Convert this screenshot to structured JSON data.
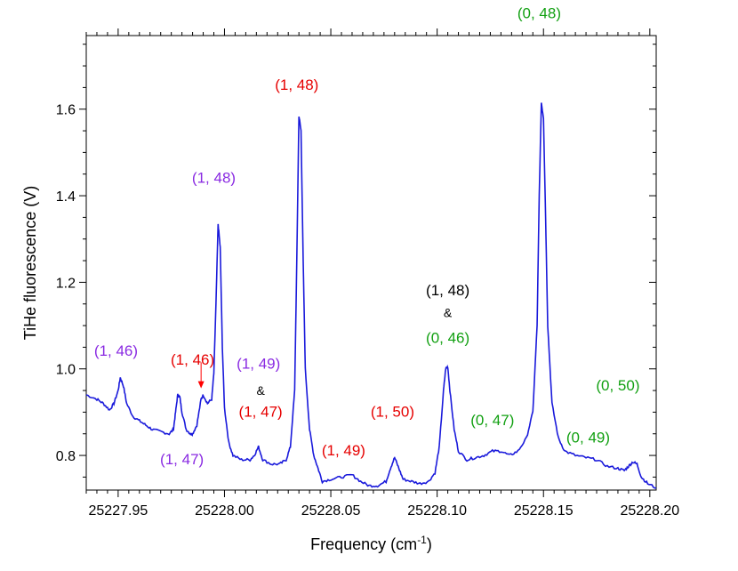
{
  "chart_data": {
    "type": "line",
    "title": "",
    "xlabel": "Frequency (cm",
    "xlabel_sup": "-1",
    "xlabel_tail": ")",
    "ylabel": "TiHe fluorescence (V)",
    "xlim": [
      25227.935,
      25228.203
    ],
    "ylim": [
      0.72,
      1.77
    ],
    "x_ticks": [
      25227.95,
      25228.0,
      25228.05,
      25228.1,
      25228.15,
      25228.2
    ],
    "x_tick_labels": [
      "25227.95",
      "25228.00",
      "25228.05",
      "25228.10",
      "25228.15",
      "25228.20"
    ],
    "y_ticks": [
      0.8,
      1.0,
      1.2,
      1.4,
      1.6
    ],
    "y_tick_labels": [
      "0.8",
      "1.0",
      "1.2",
      "1.4",
      "1.6"
    ],
    "grid": false,
    "colors": {
      "line": "#1a1adb",
      "purple": "#8a2be2",
      "red": "#e60000",
      "green": "#12a012",
      "black": "#000000",
      "arrow": "#ff0000"
    },
    "series": [
      {
        "values": [
          [
            25227.935,
            0.94
          ],
          [
            25227.94,
            0.93
          ],
          [
            25227.943,
            0.92
          ],
          [
            25227.946,
            0.905
          ],
          [
            25227.948,
            0.92
          ],
          [
            25227.95,
            0.95
          ],
          [
            25227.951,
            0.98
          ],
          [
            25227.9525,
            0.96
          ],
          [
            25227.954,
            0.92
          ],
          [
            25227.957,
            0.89
          ],
          [
            25227.96,
            0.88
          ],
          [
            25227.963,
            0.87
          ],
          [
            25227.966,
            0.86
          ],
          [
            25227.97,
            0.855
          ],
          [
            25227.974,
            0.85
          ],
          [
            25227.976,
            0.86
          ],
          [
            25227.977,
            0.9
          ],
          [
            25227.978,
            0.94
          ],
          [
            25227.979,
            0.935
          ],
          [
            25227.98,
            0.9
          ],
          [
            25227.982,
            0.86
          ],
          [
            25227.984,
            0.85
          ],
          [
            25227.985,
            0.85
          ],
          [
            25227.987,
            0.87
          ],
          [
            25227.989,
            0.93
          ],
          [
            25227.99,
            0.94
          ],
          [
            25227.992,
            0.92
          ],
          [
            25227.994,
            0.93
          ],
          [
            25227.995,
            0.99
          ],
          [
            25227.996,
            1.15
          ],
          [
            25227.997,
            1.335
          ],
          [
            25227.998,
            1.28
          ],
          [
            25227.999,
            1.05
          ],
          [
            25228.0,
            0.91
          ],
          [
            25228.002,
            0.83
          ],
          [
            25228.004,
            0.8
          ],
          [
            25228.008,
            0.79
          ],
          [
            25228.012,
            0.79
          ],
          [
            25228.014,
            0.8
          ],
          [
            25228.016,
            0.82
          ],
          [
            25228.018,
            0.79
          ],
          [
            25228.022,
            0.78
          ],
          [
            25228.026,
            0.78
          ],
          [
            25228.029,
            0.79
          ],
          [
            25228.031,
            0.82
          ],
          [
            25228.033,
            0.95
          ],
          [
            25228.034,
            1.25
          ],
          [
            25228.035,
            1.585
          ],
          [
            25228.036,
            1.55
          ],
          [
            25228.037,
            1.25
          ],
          [
            25228.038,
            1.0
          ],
          [
            25228.04,
            0.86
          ],
          [
            25228.042,
            0.8
          ],
          [
            25228.044,
            0.77
          ],
          [
            25228.046,
            0.74
          ],
          [
            25228.05,
            0.745
          ],
          [
            25228.055,
            0.75
          ],
          [
            25228.06,
            0.755
          ],
          [
            25228.064,
            0.74
          ],
          [
            25228.068,
            0.73
          ],
          [
            25228.072,
            0.73
          ],
          [
            25228.076,
            0.74
          ],
          [
            25228.078,
            0.77
          ],
          [
            25228.08,
            0.795
          ],
          [
            25228.082,
            0.77
          ],
          [
            25228.084,
            0.745
          ],
          [
            25228.088,
            0.74
          ],
          [
            25228.092,
            0.735
          ],
          [
            25228.096,
            0.74
          ],
          [
            25228.099,
            0.76
          ],
          [
            25228.101,
            0.82
          ],
          [
            25228.103,
            0.95
          ],
          [
            25228.104,
            1.0
          ],
          [
            25228.105,
            1.005
          ],
          [
            25228.106,
            0.95
          ],
          [
            25228.108,
            0.86
          ],
          [
            25228.11,
            0.81
          ],
          [
            25228.114,
            0.79
          ],
          [
            25228.118,
            0.795
          ],
          [
            25228.122,
            0.8
          ],
          [
            25228.126,
            0.81
          ],
          [
            25228.13,
            0.81
          ],
          [
            25228.134,
            0.8
          ],
          [
            25228.138,
            0.81
          ],
          [
            25228.142,
            0.84
          ],
          [
            25228.145,
            0.9
          ],
          [
            25228.147,
            1.1
          ],
          [
            25228.148,
            1.4
          ],
          [
            25228.149,
            1.615
          ],
          [
            25228.15,
            1.58
          ],
          [
            25228.151,
            1.35
          ],
          [
            25228.152,
            1.1
          ],
          [
            25228.154,
            0.92
          ],
          [
            25228.157,
            0.84
          ],
          [
            25228.16,
            0.81
          ],
          [
            25228.165,
            0.8
          ],
          [
            25228.17,
            0.795
          ],
          [
            25228.175,
            0.79
          ],
          [
            25228.18,
            0.775
          ],
          [
            25228.185,
            0.77
          ],
          [
            25228.188,
            0.765
          ],
          [
            25228.19,
            0.775
          ],
          [
            25228.192,
            0.785
          ],
          [
            25228.194,
            0.78
          ],
          [
            25228.196,
            0.75
          ],
          [
            25228.199,
            0.735
          ],
          [
            25228.203,
            0.725
          ]
        ]
      }
    ],
    "annotations": [
      {
        "text": "(1, 46)",
        "color": "purple",
        "x": 25227.949,
        "y": 1.03
      },
      {
        "text": "(1, 47)",
        "color": "purple",
        "x": 25227.98,
        "y": 0.78
      },
      {
        "text": "(1, 46)",
        "color": "red",
        "x": 25227.985,
        "y": 1.01
      },
      {
        "text": "(1, 48)",
        "color": "purple",
        "x": 25227.995,
        "y": 1.43
      },
      {
        "text": "(1, 49)",
        "color": "purple",
        "x": 25228.016,
        "y": 1.0
      },
      {
        "text": "&",
        "color": "black",
        "x": 25228.017,
        "y": 0.94,
        "small": true
      },
      {
        "text": "(1, 47)",
        "color": "red",
        "x": 25228.017,
        "y": 0.89
      },
      {
        "text": "(1, 48)",
        "color": "red",
        "x": 25228.034,
        "y": 1.645
      },
      {
        "text": "(1, 49)",
        "color": "red",
        "x": 25228.056,
        "y": 0.8
      },
      {
        "text": "(1, 50)",
        "color": "red",
        "x": 25228.079,
        "y": 0.89
      },
      {
        "text": "(1, 48)",
        "color": "black",
        "x": 25228.105,
        "y": 1.17
      },
      {
        "text": "&",
        "color": "black",
        "x": 25228.105,
        "y": 1.12,
        "small": true
      },
      {
        "text": "(0, 46)",
        "color": "green",
        "x": 25228.105,
        "y": 1.06
      },
      {
        "text": "(0, 47)",
        "color": "green",
        "x": 25228.126,
        "y": 0.87
      },
      {
        "text": "(0, 48)",
        "color": "green",
        "x": 25228.148,
        "y": 1.81
      },
      {
        "text": "(0, 49)",
        "color": "green",
        "x": 25228.171,
        "y": 0.83
      },
      {
        "text": "(0, 50)",
        "color": "green",
        "x": 25228.185,
        "y": 0.95
      }
    ],
    "arrow": {
      "x": 25227.989,
      "y_from": 1.015,
      "y_to": 0.955,
      "color": "arrow"
    }
  }
}
